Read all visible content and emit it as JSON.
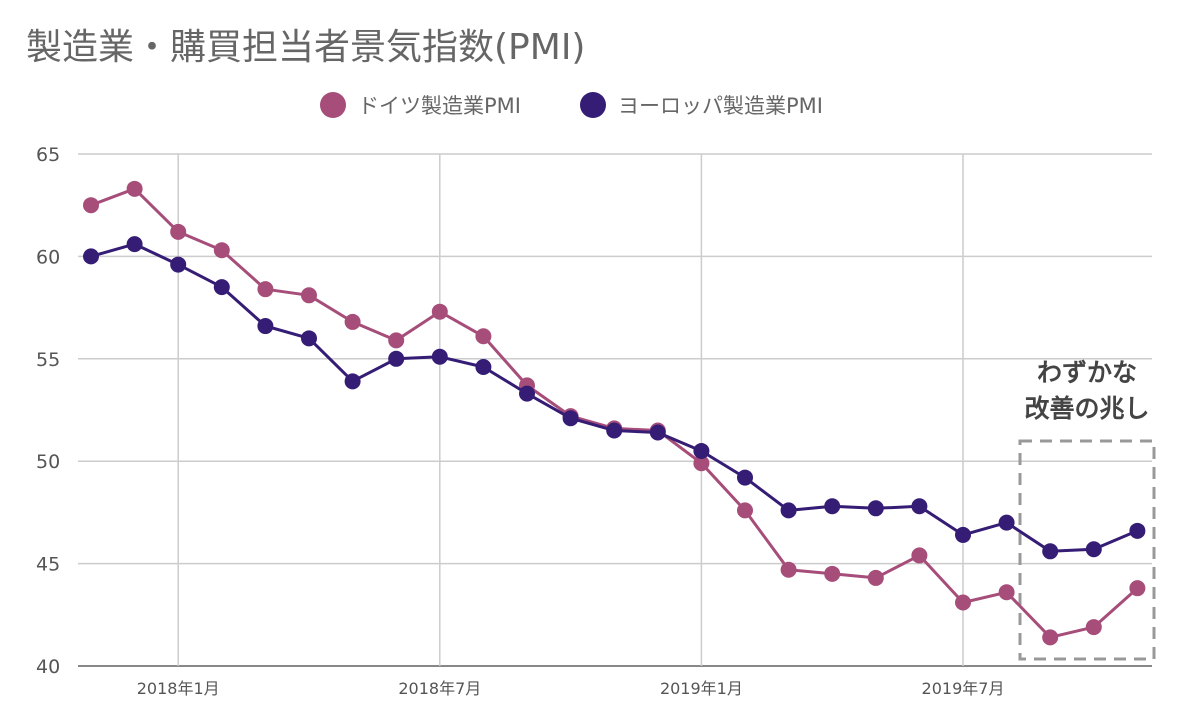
{
  "chart_data": {
    "type": "line",
    "title": "製造業・購買担当者景気指数(PMI)",
    "xlabel": "",
    "ylabel": "",
    "ylim": [
      40,
      65
    ],
    "yticks": [
      "40",
      "45",
      "50",
      "55",
      "60",
      "65"
    ],
    "x_tick_labels": [
      "2018年1月",
      "2018年7月",
      "2019年1月",
      "2019年7月"
    ],
    "x": [
      "2017-11",
      "2017-12",
      "2018-01",
      "2018-02",
      "2018-03",
      "2018-04",
      "2018-05",
      "2018-06",
      "2018-07",
      "2018-08",
      "2018-09",
      "2018-10",
      "2018-11",
      "2018-12",
      "2019-01",
      "2019-02",
      "2019-03",
      "2019-04",
      "2019-05",
      "2019-06",
      "2019-07",
      "2019-08",
      "2019-09",
      "2019-10",
      "2019-11"
    ],
    "series": [
      {
        "name": "ドイツ製造業PMI",
        "color": "#a64d79",
        "values": [
          62.5,
          63.3,
          61.2,
          60.3,
          58.4,
          58.1,
          56.8,
          55.9,
          57.3,
          56.1,
          53.7,
          52.2,
          51.6,
          51.5,
          49.9,
          47.6,
          44.7,
          44.5,
          44.3,
          45.4,
          43.1,
          43.6,
          41.4,
          41.9,
          43.8
        ]
      },
      {
        "name": "ヨーロッパ製造業PMI",
        "color": "#351c75",
        "values": [
          60.0,
          60.6,
          59.6,
          58.5,
          56.6,
          56.0,
          53.9,
          55.0,
          55.1,
          54.6,
          53.3,
          52.1,
          51.5,
          51.4,
          50.5,
          49.2,
          47.6,
          47.8,
          47.7,
          47.8,
          46.4,
          47.0,
          45.6,
          45.7,
          46.6
        ]
      }
    ],
    "grid": true,
    "legend_position": "top",
    "annotation": {
      "lines": [
        "わずかな",
        "改善の兆し"
      ],
      "range": [
        "2019-09",
        "2019-11"
      ]
    }
  }
}
